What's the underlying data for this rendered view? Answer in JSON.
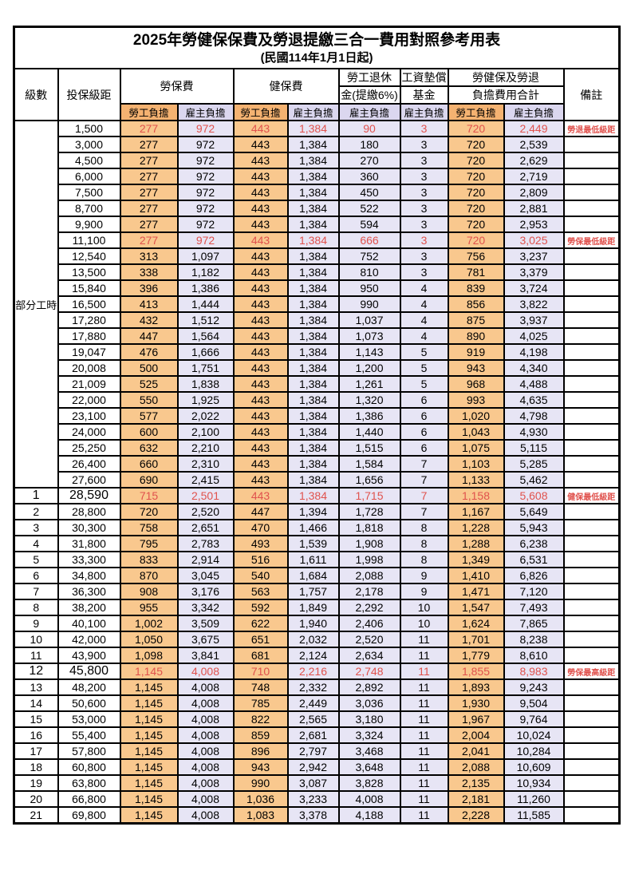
{
  "title": "2025年勞健保保費及勞退提繳三合一費用對照參考用表",
  "subtitle": "(民國114年1月1日起)",
  "colors": {
    "employee_header_bg": "#F4B271",
    "employee_body_bg": "#F9C88E",
    "employer_header_bg": "#DBD7EF",
    "employer_body_bg": "#E7E5F5",
    "highlight_red": "#E0524D"
  },
  "header": {
    "level": "級數",
    "bracket": "投保級距",
    "labor_insurance": "勞保費",
    "health_insurance": "健保費",
    "pension_line1": "勞工退休",
    "pension_line2": "金(提繳6%)",
    "wage_fund_line1": "工資墊償",
    "wage_fund_line2": "基金",
    "total_line1": "勞健保及勞退",
    "total_line2": "負擔費用合計",
    "note": "備註",
    "employee_share": "勞工負擔",
    "employer_share": "雇主負擔"
  },
  "part_time_label": "部分工時",
  "part_time_rowspan": 23,
  "rows": [
    {
      "level": "",
      "salary": "1,500",
      "values": [
        "277",
        "972",
        "443",
        "1,384",
        "90",
        "3",
        "720",
        "2,449"
      ],
      "note": "勞退最低級距",
      "red": true
    },
    {
      "level": "",
      "salary": "3,000",
      "values": [
        "277",
        "972",
        "443",
        "1,384",
        "180",
        "3",
        "720",
        "2,539"
      ],
      "note": ""
    },
    {
      "level": "",
      "salary": "4,500",
      "values": [
        "277",
        "972",
        "443",
        "1,384",
        "270",
        "3",
        "720",
        "2,629"
      ],
      "note": ""
    },
    {
      "level": "",
      "salary": "6,000",
      "values": [
        "277",
        "972",
        "443",
        "1,384",
        "360",
        "3",
        "720",
        "2,719"
      ],
      "note": ""
    },
    {
      "level": "",
      "salary": "7,500",
      "values": [
        "277",
        "972",
        "443",
        "1,384",
        "450",
        "3",
        "720",
        "2,809"
      ],
      "note": ""
    },
    {
      "level": "",
      "salary": "8,700",
      "values": [
        "277",
        "972",
        "443",
        "1,384",
        "522",
        "3",
        "720",
        "2,881"
      ],
      "note": ""
    },
    {
      "level": "",
      "salary": "9,900",
      "values": [
        "277",
        "972",
        "443",
        "1,384",
        "594",
        "3",
        "720",
        "2,953"
      ],
      "note": ""
    },
    {
      "level": "",
      "salary": "11,100",
      "values": [
        "277",
        "972",
        "443",
        "1,384",
        "666",
        "3",
        "720",
        "3,025"
      ],
      "note": "勞保最低級距",
      "red": true
    },
    {
      "level": "",
      "salary": "12,540",
      "values": [
        "313",
        "1,097",
        "443",
        "1,384",
        "752",
        "3",
        "756",
        "3,237"
      ],
      "note": ""
    },
    {
      "level": "",
      "salary": "13,500",
      "values": [
        "338",
        "1,182",
        "443",
        "1,384",
        "810",
        "3",
        "781",
        "3,379"
      ],
      "note": ""
    },
    {
      "level": "",
      "salary": "15,840",
      "values": [
        "396",
        "1,386",
        "443",
        "1,384",
        "950",
        "4",
        "839",
        "3,724"
      ],
      "note": ""
    },
    {
      "level": "",
      "salary": "16,500",
      "values": [
        "413",
        "1,444",
        "443",
        "1,384",
        "990",
        "4",
        "856",
        "3,822"
      ],
      "note": ""
    },
    {
      "level": "",
      "salary": "17,280",
      "values": [
        "432",
        "1,512",
        "443",
        "1,384",
        "1,037",
        "4",
        "875",
        "3,937"
      ],
      "note": ""
    },
    {
      "level": "",
      "salary": "17,880",
      "values": [
        "447",
        "1,564",
        "443",
        "1,384",
        "1,073",
        "4",
        "890",
        "4,025"
      ],
      "note": ""
    },
    {
      "level": "",
      "salary": "19,047",
      "values": [
        "476",
        "1,666",
        "443",
        "1,384",
        "1,143",
        "5",
        "919",
        "4,198"
      ],
      "note": ""
    },
    {
      "level": "",
      "salary": "20,008",
      "values": [
        "500",
        "1,751",
        "443",
        "1,384",
        "1,200",
        "5",
        "943",
        "4,340"
      ],
      "note": ""
    },
    {
      "level": "",
      "salary": "21,009",
      "values": [
        "525",
        "1,838",
        "443",
        "1,384",
        "1,261",
        "5",
        "968",
        "4,488"
      ],
      "note": ""
    },
    {
      "level": "",
      "salary": "22,000",
      "values": [
        "550",
        "1,925",
        "443",
        "1,384",
        "1,320",
        "6",
        "993",
        "4,635"
      ],
      "note": ""
    },
    {
      "level": "",
      "salary": "23,100",
      "values": [
        "577",
        "2,022",
        "443",
        "1,384",
        "1,386",
        "6",
        "1,020",
        "4,798"
      ],
      "note": ""
    },
    {
      "level": "",
      "salary": "24,000",
      "values": [
        "600",
        "2,100",
        "443",
        "1,384",
        "1,440",
        "6",
        "1,043",
        "4,930"
      ],
      "note": ""
    },
    {
      "level": "",
      "salary": "25,250",
      "values": [
        "632",
        "2,210",
        "443",
        "1,384",
        "1,515",
        "6",
        "1,075",
        "5,115"
      ],
      "note": ""
    },
    {
      "level": "",
      "salary": "26,400",
      "values": [
        "660",
        "2,310",
        "443",
        "1,384",
        "1,584",
        "7",
        "1,103",
        "5,285"
      ],
      "note": ""
    },
    {
      "level": "",
      "salary": "27,600",
      "values": [
        "690",
        "2,415",
        "443",
        "1,384",
        "1,656",
        "7",
        "1,133",
        "5,462"
      ],
      "note": ""
    },
    {
      "level": "1",
      "salary": "28,590",
      "values": [
        "715",
        "2,501",
        "443",
        "1,384",
        "1,715",
        "7",
        "1,158",
        "5,608"
      ],
      "note": "健保最低級距",
      "red": true,
      "big": true
    },
    {
      "level": "2",
      "salary": "28,800",
      "values": [
        "720",
        "2,520",
        "447",
        "1,394",
        "1,728",
        "7",
        "1,167",
        "5,649"
      ],
      "note": ""
    },
    {
      "level": "3",
      "salary": "30,300",
      "values": [
        "758",
        "2,651",
        "470",
        "1,466",
        "1,818",
        "8",
        "1,228",
        "5,943"
      ],
      "note": ""
    },
    {
      "level": "4",
      "salary": "31,800",
      "values": [
        "795",
        "2,783",
        "493",
        "1,539",
        "1,908",
        "8",
        "1,288",
        "6,238"
      ],
      "note": ""
    },
    {
      "level": "5",
      "salary": "33,300",
      "values": [
        "833",
        "2,914",
        "516",
        "1,611",
        "1,998",
        "8",
        "1,349",
        "6,531"
      ],
      "note": ""
    },
    {
      "level": "6",
      "salary": "34,800",
      "values": [
        "870",
        "3,045",
        "540",
        "1,684",
        "2,088",
        "9",
        "1,410",
        "6,826"
      ],
      "note": ""
    },
    {
      "level": "7",
      "salary": "36,300",
      "values": [
        "908",
        "3,176",
        "563",
        "1,757",
        "2,178",
        "9",
        "1,471",
        "7,120"
      ],
      "note": ""
    },
    {
      "level": "8",
      "salary": "38,200",
      "values": [
        "955",
        "3,342",
        "592",
        "1,849",
        "2,292",
        "10",
        "1,547",
        "7,493"
      ],
      "note": ""
    },
    {
      "level": "9",
      "salary": "40,100",
      "values": [
        "1,002",
        "3,509",
        "622",
        "1,940",
        "2,406",
        "10",
        "1,624",
        "7,865"
      ],
      "note": ""
    },
    {
      "level": "10",
      "salary": "42,000",
      "values": [
        "1,050",
        "3,675",
        "651",
        "2,032",
        "2,520",
        "11",
        "1,701",
        "8,238"
      ],
      "note": ""
    },
    {
      "level": "11",
      "salary": "43,900",
      "values": [
        "1,098",
        "3,841",
        "681",
        "2,124",
        "2,634",
        "11",
        "1,779",
        "8,610"
      ],
      "note": ""
    },
    {
      "level": "12",
      "salary": "45,800",
      "values": [
        "1,145",
        "4,008",
        "710",
        "2,216",
        "2,748",
        "11",
        "1,855",
        "8,983"
      ],
      "note": "勞保最高級距",
      "red": true,
      "big": true
    },
    {
      "level": "13",
      "salary": "48,200",
      "values": [
        "1,145",
        "4,008",
        "748",
        "2,332",
        "2,892",
        "11",
        "1,893",
        "9,243"
      ],
      "note": ""
    },
    {
      "level": "14",
      "salary": "50,600",
      "values": [
        "1,145",
        "4,008",
        "785",
        "2,449",
        "3,036",
        "11",
        "1,930",
        "9,504"
      ],
      "note": ""
    },
    {
      "level": "15",
      "salary": "53,000",
      "values": [
        "1,145",
        "4,008",
        "822",
        "2,565",
        "3,180",
        "11",
        "1,967",
        "9,764"
      ],
      "note": ""
    },
    {
      "level": "16",
      "salary": "55,400",
      "values": [
        "1,145",
        "4,008",
        "859",
        "2,681",
        "3,324",
        "11",
        "2,004",
        "10,024"
      ],
      "note": ""
    },
    {
      "level": "17",
      "salary": "57,800",
      "values": [
        "1,145",
        "4,008",
        "896",
        "2,797",
        "3,468",
        "11",
        "2,041",
        "10,284"
      ],
      "note": ""
    },
    {
      "level": "18",
      "salary": "60,800",
      "values": [
        "1,145",
        "4,008",
        "943",
        "2,942",
        "3,648",
        "11",
        "2,088",
        "10,609"
      ],
      "note": ""
    },
    {
      "level": "19",
      "salary": "63,800",
      "values": [
        "1,145",
        "4,008",
        "990",
        "3,087",
        "3,828",
        "11",
        "2,135",
        "10,934"
      ],
      "note": ""
    },
    {
      "level": "20",
      "salary": "66,800",
      "values": [
        "1,145",
        "4,008",
        "1,036",
        "3,233",
        "4,008",
        "11",
        "2,181",
        "11,260"
      ],
      "note": ""
    },
    {
      "level": "21",
      "salary": "69,800",
      "values": [
        "1,145",
        "4,008",
        "1,083",
        "3,378",
        "4,188",
        "11",
        "2,228",
        "11,585"
      ],
      "note": ""
    }
  ]
}
